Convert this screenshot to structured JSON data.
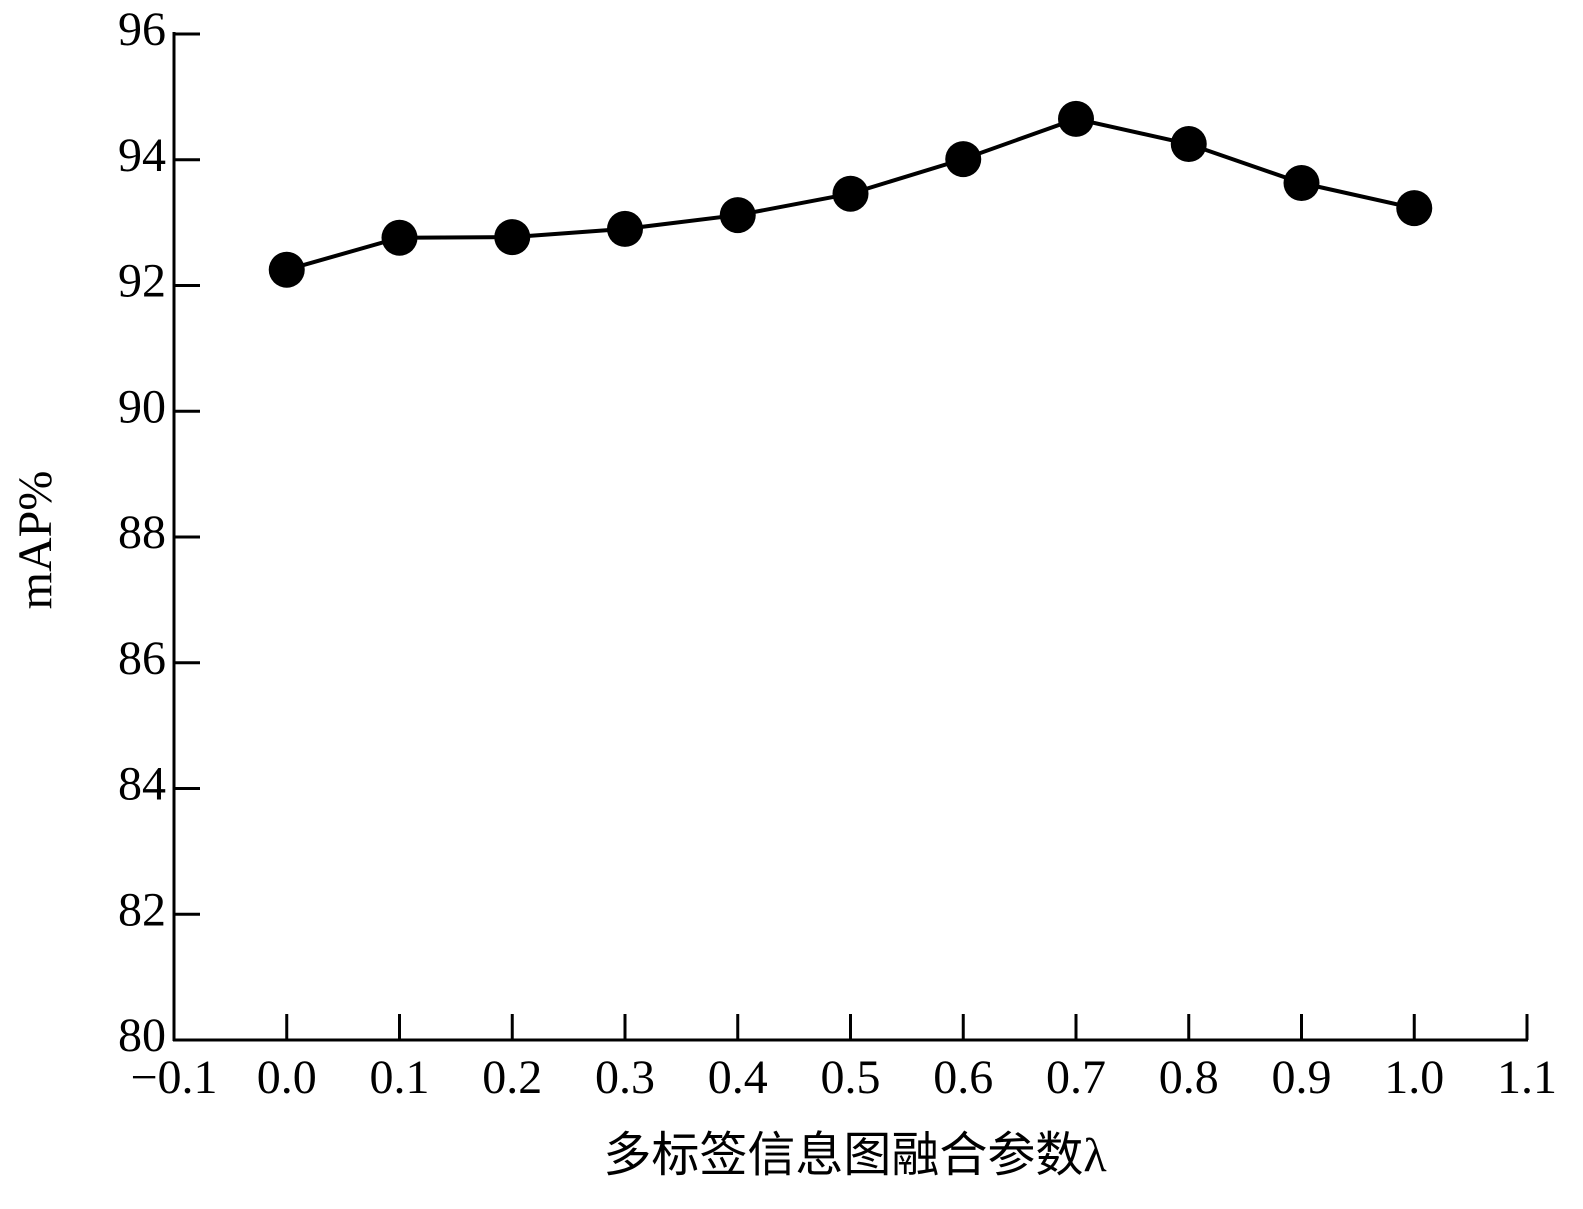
{
  "chart_data": {
    "type": "line",
    "x_label": "多标签信息图融合参数λ",
    "y_label": "mAP%",
    "x": [
      0.0,
      0.1,
      0.2,
      0.3,
      0.4,
      0.5,
      0.6,
      0.7,
      0.8,
      0.9,
      1.0
    ],
    "series": [
      {
        "name": "mAP",
        "color": "#000000",
        "values": [
          92.25,
          92.76,
          92.77,
          92.9,
          93.12,
          93.46,
          94.01,
          94.65,
          94.25,
          93.63,
          93.23
        ]
      }
    ],
    "xlim": [
      -0.1,
      1.1
    ],
    "xticks": [
      {
        "value": -0.1,
        "label": "−0.1"
      },
      {
        "value": 0,
        "label": "0.0"
      },
      0.1,
      0.2,
      0.3,
      0.4,
      0.5,
      0.6,
      0.7,
      0.8,
      0.9,
      {
        "value": 1,
        "label": "1.0"
      },
      1.1
    ],
    "ylim": [
      80,
      96
    ],
    "yticks": [
      80,
      82,
      84,
      86,
      88,
      90,
      92,
      94,
      96
    ],
    "grid": false
  }
}
